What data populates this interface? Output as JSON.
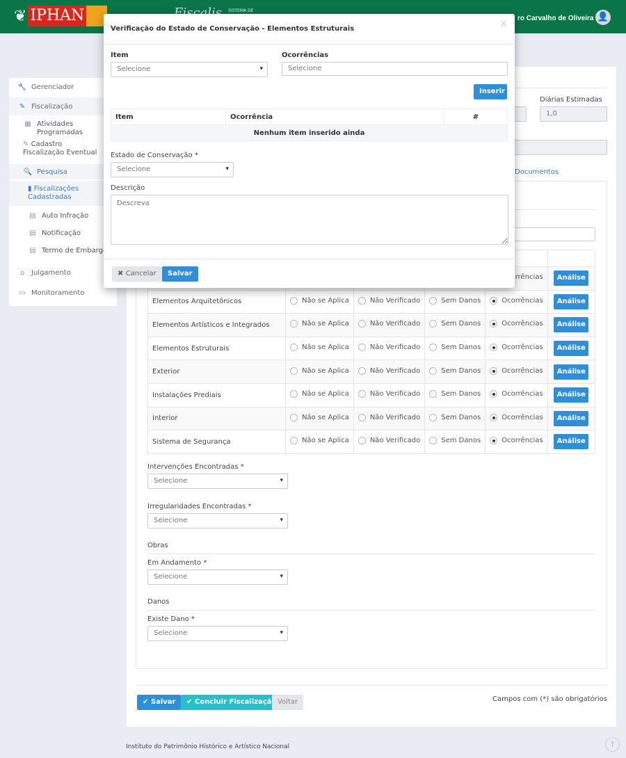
{
  "header": {
    "logo_text": "IPHAN",
    "system_name": "Fiscalis",
    "system_caption": "SISTEMA DE",
    "user_name": "ro Carvalho de Oliveira",
    "brand_color": "#0b754a"
  },
  "sidebar": {
    "items": [
      {
        "label": "Gerenciador",
        "icon": "wrench-icon"
      },
      {
        "label": "Fiscalização",
        "icon": "edit-icon"
      },
      {
        "label": "Atividades Programadas",
        "icon": "calendar-icon"
      },
      {
        "label": "Cadastro Fiscalização Eventual",
        "icon": "edit-icon"
      },
      {
        "label": "Pesquisa",
        "icon": "search-icon"
      },
      {
        "label": "Fiscalizações Cadastradas",
        "icon": "clipboard-icon"
      },
      {
        "label": "Auto Infração",
        "icon": "file-icon"
      },
      {
        "label": "Notificação",
        "icon": "file-icon"
      },
      {
        "label": "Termo de Embargo",
        "icon": "file-icon"
      },
      {
        "label": "Julgamento",
        "icon": "graduation-cap-icon"
      },
      {
        "label": "Monitoramento",
        "icon": "monitor-icon"
      }
    ]
  },
  "main": {
    "diarias_label": "Diárias Estimadas",
    "diarias_value": "1,0",
    "tab_documentos": "Documentos",
    "radio_options": [
      "Não se Aplica",
      "Não Verificado",
      "Sem Danos",
      "Ocorrências"
    ],
    "analise_label": "Análise",
    "rows": [
      {
        "name": "",
        "selected": "Ocorrências"
      },
      {
        "name": "Elementos Arquitetônicos",
        "selected": "Ocorrências"
      },
      {
        "name": "Elementos Artísticos e Integrados",
        "selected": "Ocorrências"
      },
      {
        "name": "Elementos Estruturais",
        "selected": "Ocorrências"
      },
      {
        "name": "Exterior",
        "selected": "Ocorrências"
      },
      {
        "name": "Instalações Prediais",
        "selected": "Ocorrências"
      },
      {
        "name": "Interior",
        "selected": "Ocorrências"
      },
      {
        "name": "Sistema de Segurança",
        "selected": "Ocorrências"
      }
    ],
    "intervencoes_label": "Intervenções Encontradas *",
    "irregularidades_label": "Irregularidades Encontradas *",
    "obras_section": "Obras",
    "andamento_label": "Em Andamento *",
    "danos_section": "Danos",
    "existe_dano_label": "Existe Dano *",
    "select_placeholder": "Selecione",
    "save_label": "Salvar",
    "conclude_label": "Concluir Fiscalização",
    "back_label": "Voltar",
    "required_note": "Campos com (*) são obrigatórios"
  },
  "modal": {
    "title": "Verificação do Estado de Conservação - Elementos Estruturais",
    "item_label": "Item",
    "item_placeholder": "Selecione",
    "ocorrencias_label": "Ocorrências",
    "ocorrencias_placeholder": "Selecione",
    "insert_label": "Inserir",
    "table_headers": [
      "Item",
      "Ocorrência",
      "#"
    ],
    "empty_text": "Nenhum item inserido ainda",
    "estado_label": "Estado de Conservação *",
    "estado_placeholder": "Selecione",
    "descricao_label": "Descrição",
    "descricao_placeholder": "Descreva",
    "cancel_label": "Cancelar",
    "save_label": "Salvar"
  },
  "footer": {
    "text": "Instituto do Patrimônio Histórico e Artístico Nacional"
  }
}
